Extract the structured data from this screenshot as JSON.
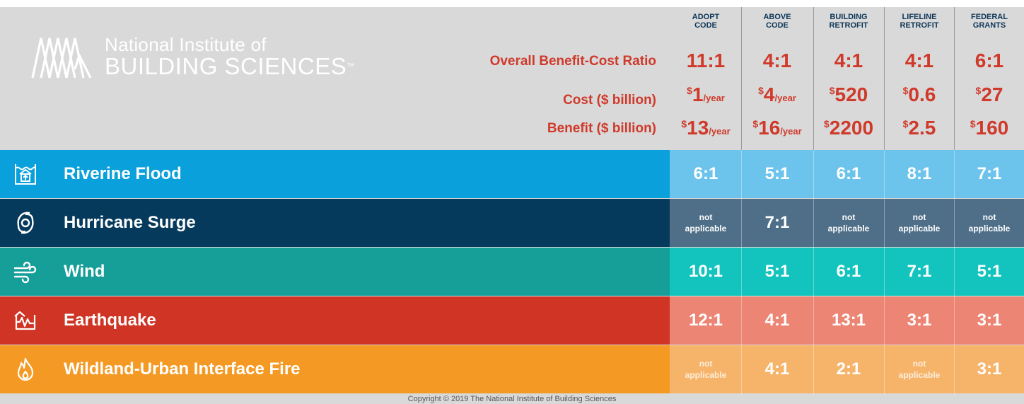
{
  "logo": {
    "line1": "National Institute of",
    "line2": "BUILDING SCIENCES",
    "tm": "™"
  },
  "metric_labels": {
    "bcr": "Overall Benefit-Cost Ratio",
    "cost": "Cost ($ billion)",
    "benefit": "Benefit ($ billion)"
  },
  "columns": [
    {
      "head1": "ADOPT",
      "head2": "CODE",
      "bcr": "11:1",
      "cost_sup": "$",
      "cost": "1",
      "cost_unit": "/year",
      "benefit_sup": "$",
      "benefit": "13",
      "benefit_unit": "/year"
    },
    {
      "head1": "ABOVE",
      "head2": "CODE",
      "bcr": "4:1",
      "cost_sup": "$",
      "cost": "4",
      "cost_unit": "/year",
      "benefit_sup": "$",
      "benefit": "16",
      "benefit_unit": "/year"
    },
    {
      "head1": "BUILDING",
      "head2": "RETROFIT",
      "bcr": "4:1",
      "cost_sup": "$",
      "cost": "520",
      "cost_unit": "",
      "benefit_sup": "$",
      "benefit": "2200",
      "benefit_unit": ""
    },
    {
      "head1": "LIFELINE",
      "head2": "RETROFIT",
      "bcr": "4:1",
      "cost_sup": "$",
      "cost": "0.6",
      "cost_unit": "",
      "benefit_sup": "$",
      "benefit": "2.5",
      "benefit_unit": ""
    },
    {
      "head1": "FEDERAL",
      "head2": "GRANTS",
      "bcr": "6:1",
      "cost_sup": "$",
      "cost": "27",
      "cost_unit": "",
      "benefit_sup": "$",
      "benefit": "160",
      "benefit_unit": ""
    }
  ],
  "rows": [
    {
      "label": "Riverine Flood",
      "icon": "flood-icon",
      "values": [
        "6:1",
        "5:1",
        "6:1",
        "8:1",
        "7:1"
      ]
    },
    {
      "label": "Hurricane Surge",
      "icon": "hurricane-icon",
      "values": [
        "not applicable",
        "7:1",
        "not applicable",
        "not applicable",
        "not applicable"
      ]
    },
    {
      "label": "Wind",
      "icon": "wind-icon",
      "values": [
        "10:1",
        "5:1",
        "6:1",
        "7:1",
        "5:1"
      ]
    },
    {
      "label": "Earthquake",
      "icon": "earthquake-icon",
      "values": [
        "12:1",
        "4:1",
        "13:1",
        "3:1",
        "3:1"
      ]
    },
    {
      "label": "Wildland-Urban Interface Fire",
      "icon": "fire-icon",
      "values": [
        "not applicable",
        "4:1",
        "2:1",
        "not applicable",
        "3:1"
      ]
    }
  ],
  "na_text": {
    "line1": "not",
    "line2": "applicable"
  },
  "colors": {
    "flood_left": "#0aa0dc",
    "flood_right": "#6cc3ec",
    "hurricane_left": "#063a5d",
    "hurricane_right": "#4f6f88",
    "wind_left": "#169e99",
    "wind_right": "#13c4be",
    "earthquake_left": "#cf3424",
    "earthquake_right": "#ec8574",
    "fire_left": "#f49a24",
    "fire_right": "#f6b46b",
    "accent_red": "#cf3a2b",
    "header_navy": "#0d3658"
  },
  "footer": "Copyright © 2019 The National Institute of Building Sciences"
}
